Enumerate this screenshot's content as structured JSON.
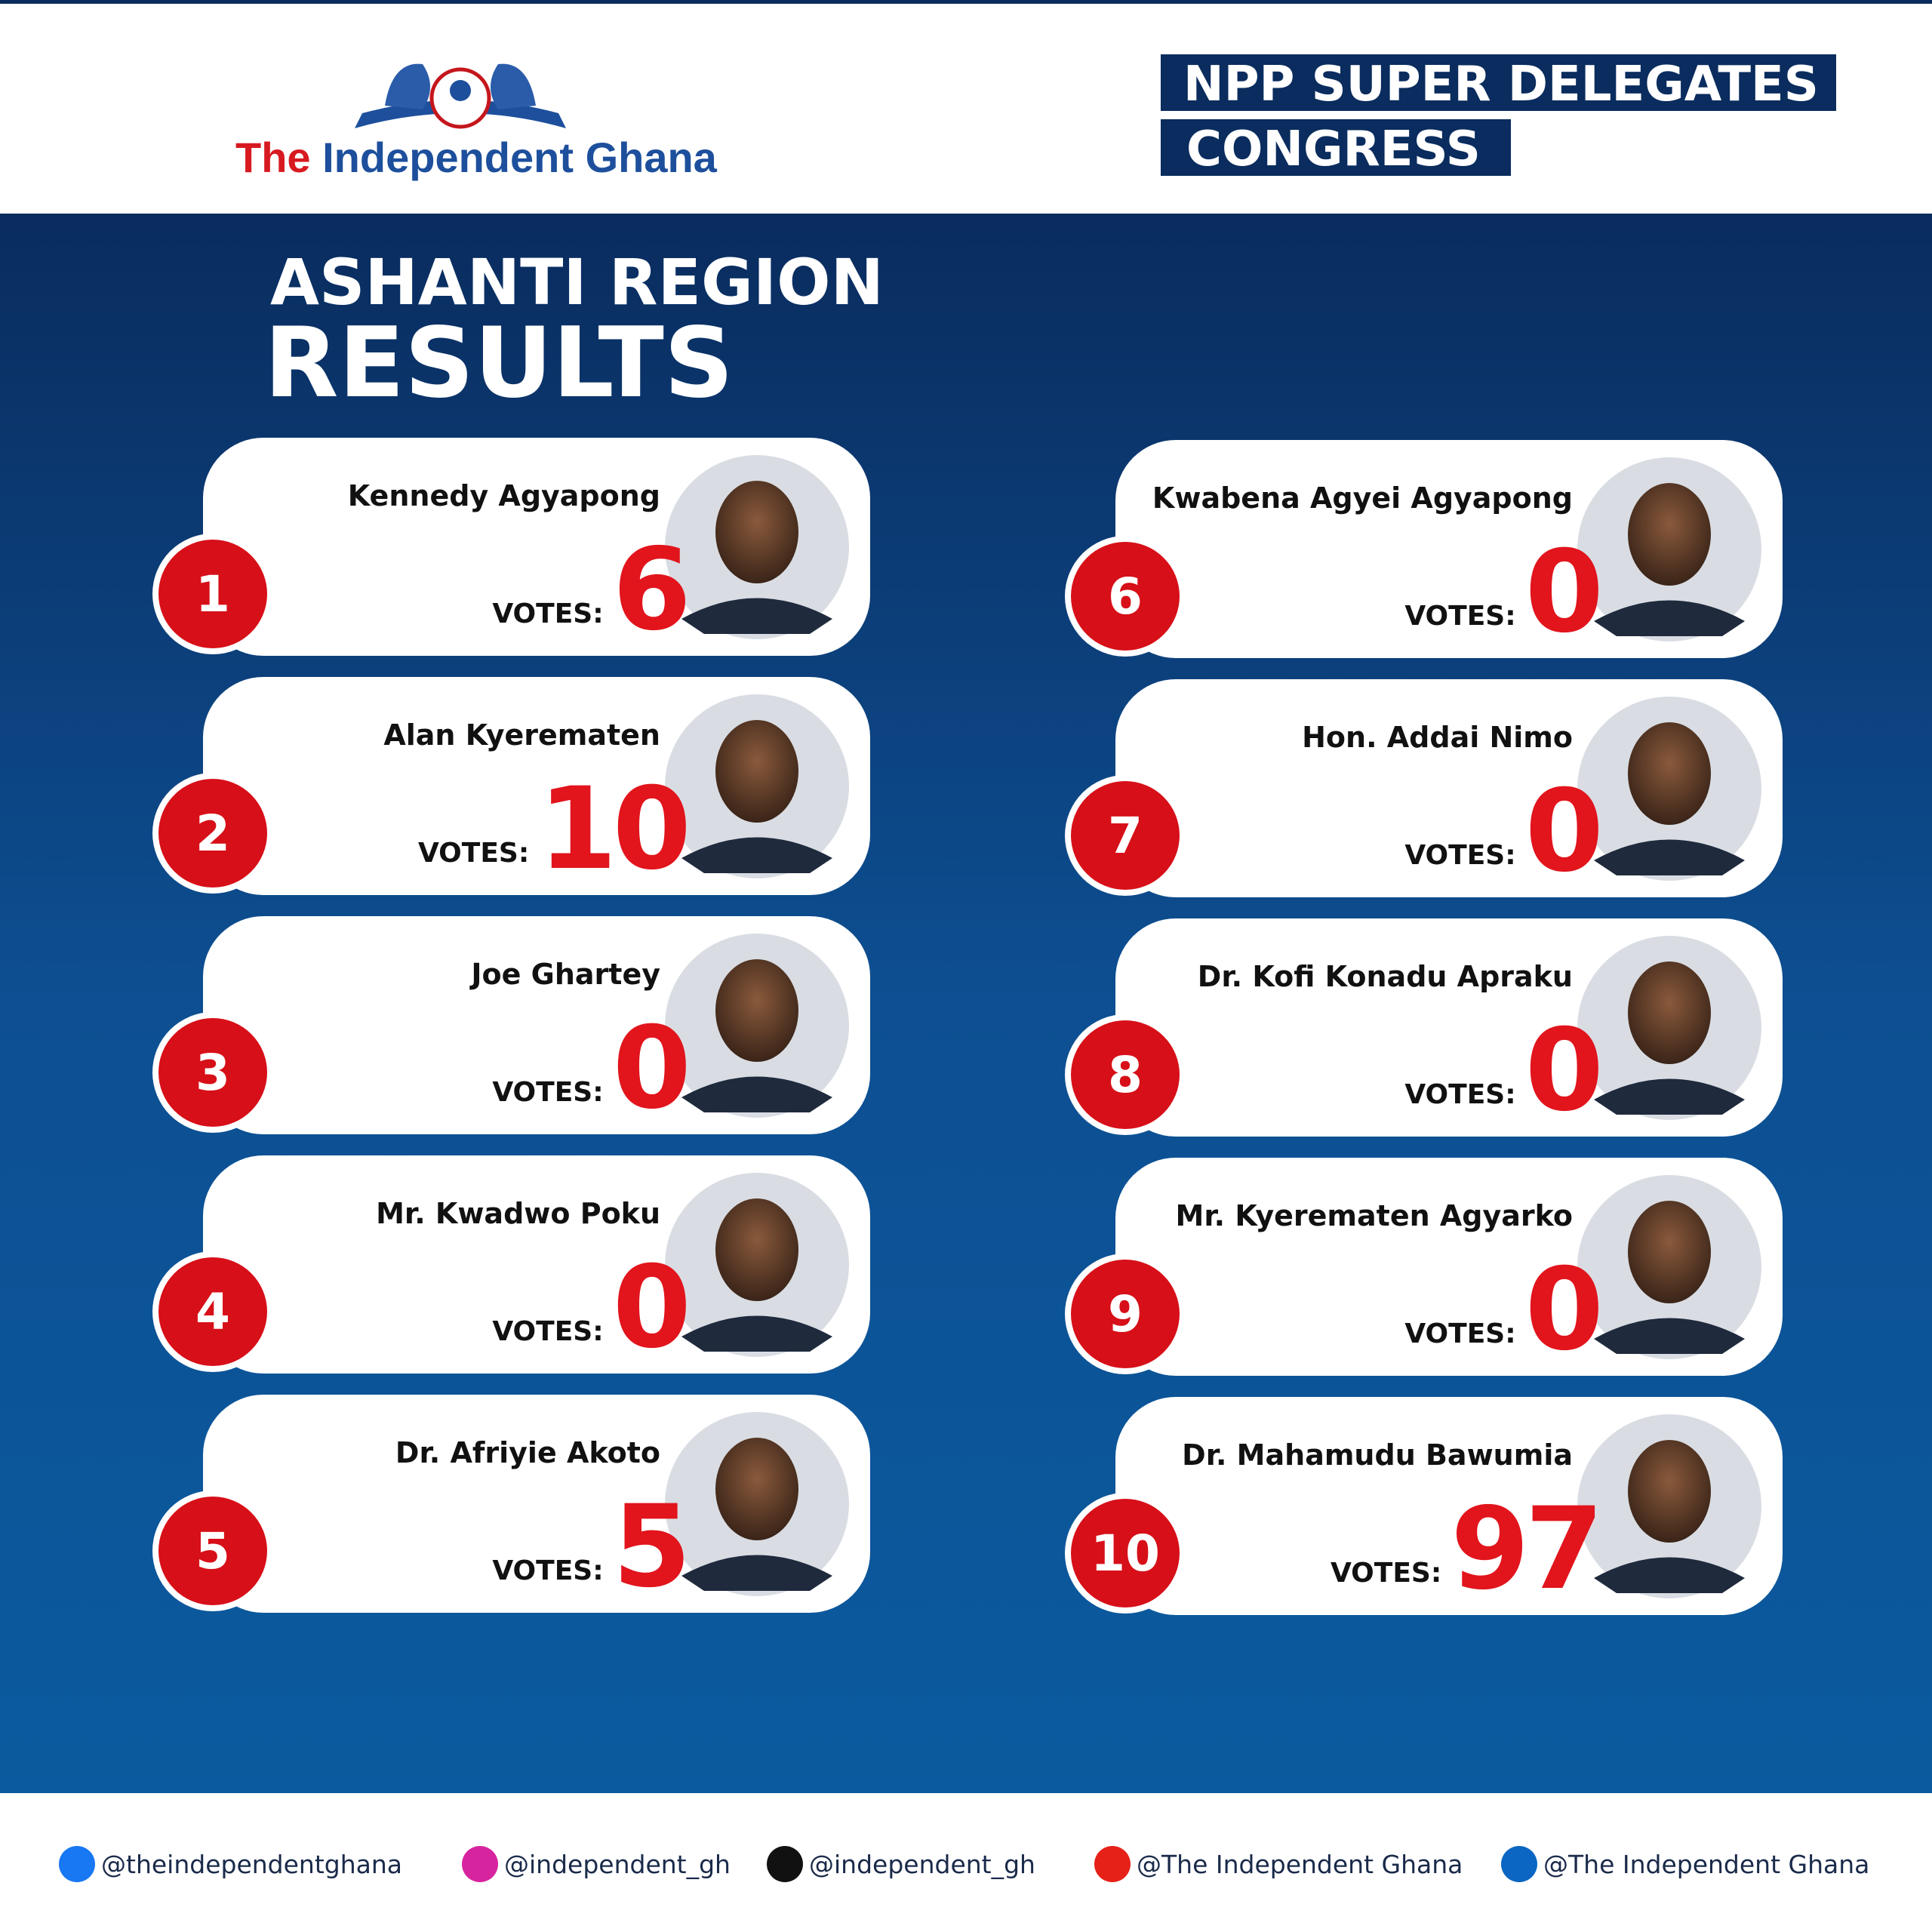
{
  "header": {
    "brand_prefix": "The",
    "brand_rest": "Independent Ghana",
    "badge_lines": [
      "NPP SUPER DELEGATES",
      "CONGRESS"
    ]
  },
  "title": {
    "line1": "ASHANTI REGION",
    "line2": "RESULTS"
  },
  "votes_label": "VOTES:",
  "candidates": [
    {
      "rank": 1,
      "name": "Kennedy Agyapong",
      "votes": 6
    },
    {
      "rank": 2,
      "name": "Alan Kyerematen",
      "votes": 10
    },
    {
      "rank": 3,
      "name": "Joe Ghartey",
      "votes": 0
    },
    {
      "rank": 4,
      "name": "Mr. Kwadwo Poku",
      "votes": 0
    },
    {
      "rank": 5,
      "name": "Dr. Afriyie Akoto",
      "votes": 5
    },
    {
      "rank": 6,
      "name": "Kwabena Agyei Agyapong",
      "votes": 0
    },
    {
      "rank": 7,
      "name": "Hon. Addai Nimo",
      "votes": 0
    },
    {
      "rank": 8,
      "name": "Dr. Kofi Konadu Apraku",
      "votes": 0
    },
    {
      "rank": 9,
      "name": "Mr. Kyerematen Agyarko",
      "votes": 0
    },
    {
      "rank": 10,
      "name": "Dr. Mahamudu Bawumia",
      "votes": 97
    }
  ],
  "social": [
    "@theindependentghana",
    "@independent_gh",
    "@independent_gh",
    "@The Independent Ghana",
    "@The Independent Ghana"
  ]
}
